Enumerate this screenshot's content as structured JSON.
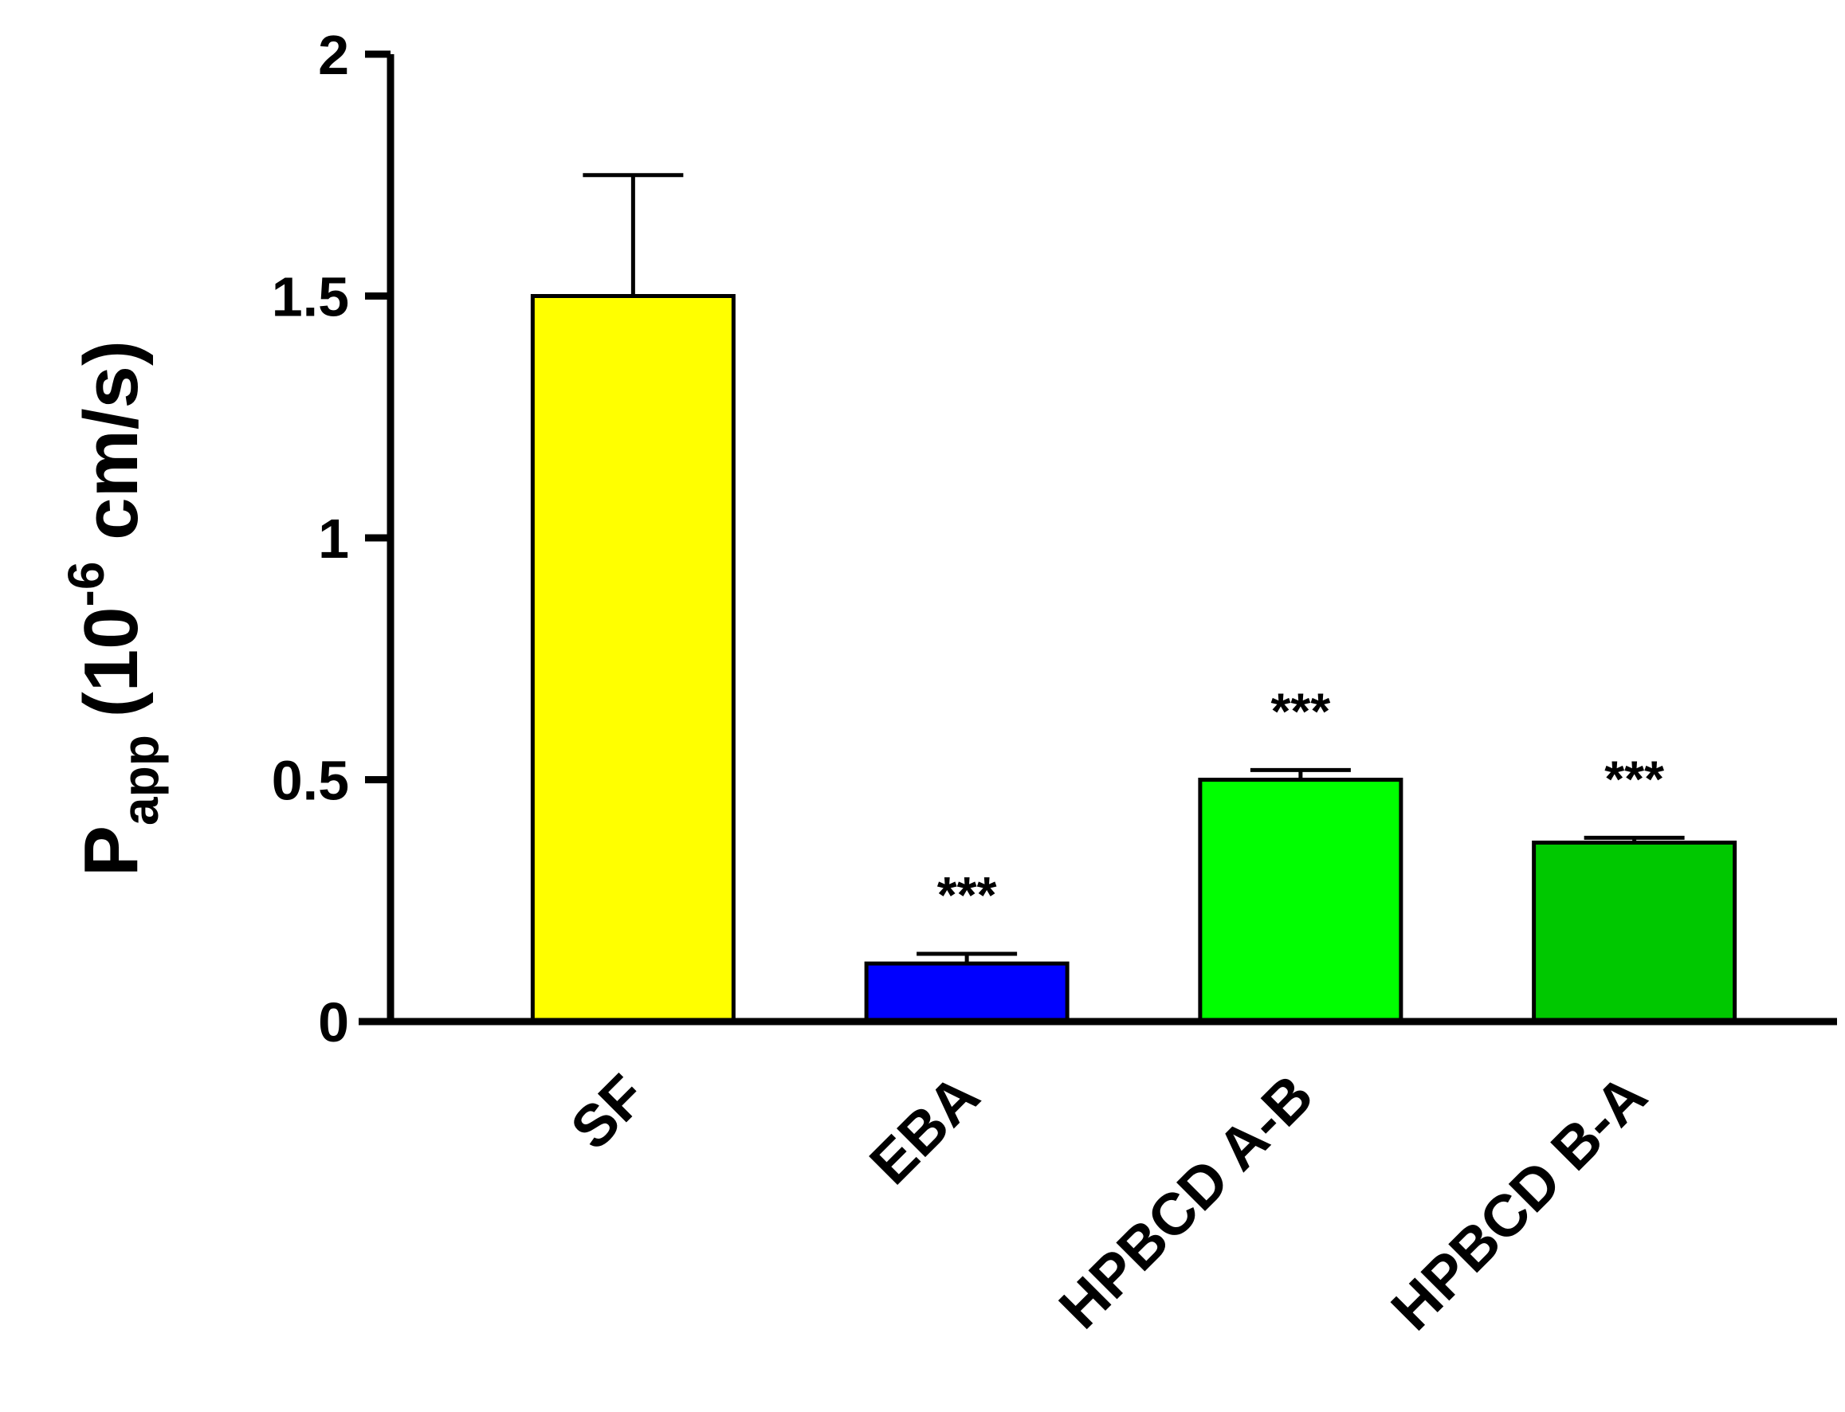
{
  "chart_data": {
    "type": "bar",
    "categories": [
      "SF",
      "EBA",
      "HPBCD A-B",
      "HPBCD B-A"
    ],
    "values": [
      1.5,
      0.12,
      0.5,
      0.37
    ],
    "errors": [
      0.25,
      0.02,
      0.02,
      0.01
    ],
    "significance": [
      "",
      "***",
      "***",
      "***"
    ],
    "colors": [
      "#ffff00",
      "#0000ff",
      "#00ff00",
      "#00c800"
    ],
    "ylim": [
      0,
      2
    ],
    "yticks": [
      "0",
      "0.5",
      "1",
      "1.5",
      "2"
    ],
    "ylabel": {
      "main": "P",
      "subscript": "app",
      "unit_prefix": "(10",
      "superscript": "-6",
      "unit_suffix": " cm/s)"
    },
    "xlabel": "",
    "grid": false
  }
}
